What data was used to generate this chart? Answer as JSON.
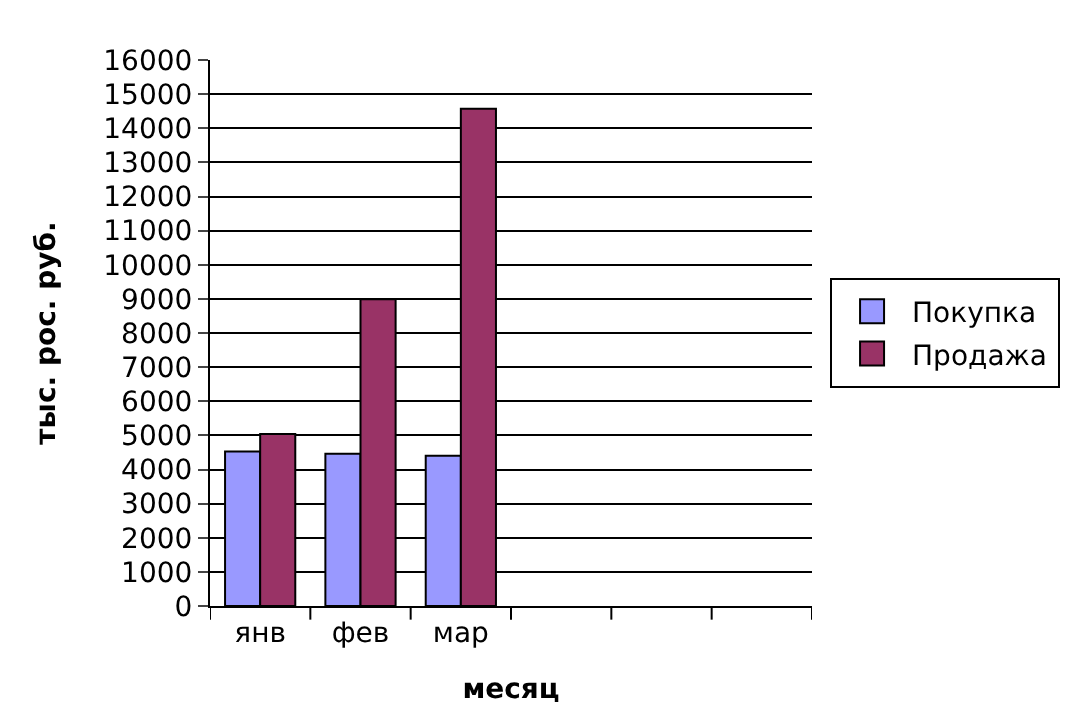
{
  "chart_data": {
    "type": "bar",
    "xlabel": "месяц",
    "ylabel": "тыс. рос. руб.",
    "categories": [
      "янв",
      "фев",
      "мар",
      null,
      null,
      null
    ],
    "series": [
      {
        "name": "Покупка",
        "color": "#9999ff",
        "values": [
          4530,
          4460,
          4400,
          null,
          null,
          null
        ]
      },
      {
        "name": "Продажа",
        "color": "#993366",
        "values": [
          5040,
          8990,
          14570,
          null,
          null,
          null
        ]
      }
    ],
    "ylim": [
      0,
      16000
    ],
    "yticks": [
      0,
      1000,
      2000,
      3000,
      4000,
      5000,
      6000,
      7000,
      8000,
      9000,
      10000,
      11000,
      12000,
      13000,
      14000,
      15000,
      16000
    ],
    "grid": "y",
    "legend": "right"
  }
}
